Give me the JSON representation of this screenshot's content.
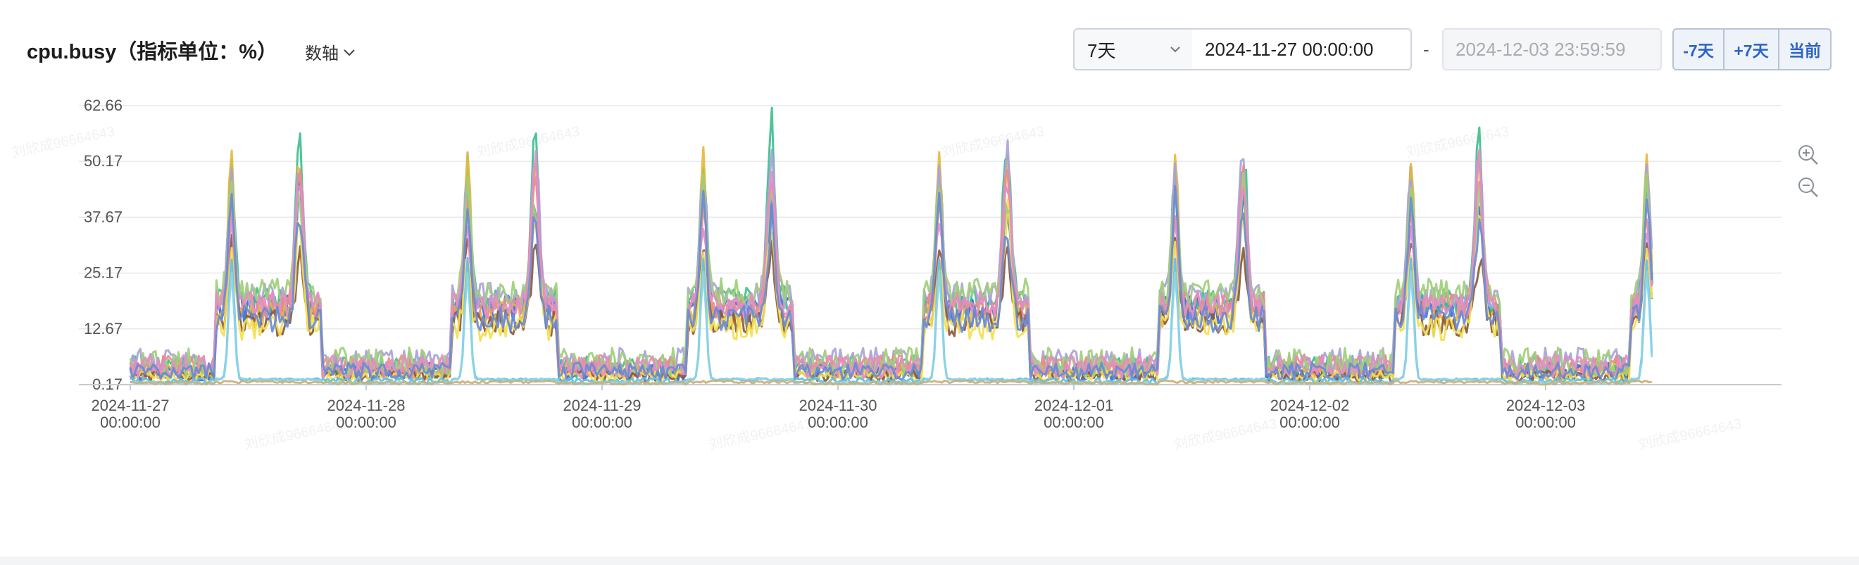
{
  "header": {
    "title": "cpu.busy（指标单位：%）",
    "axis_switch_label": "数轴"
  },
  "controls": {
    "range_value": "7天",
    "start_time": "2024-11-27 00:00:00",
    "separator": "-",
    "end_time": "2024-12-03 23:59:59",
    "buttons": [
      "-7天",
      "+7天",
      "当前"
    ]
  },
  "watermark_text": "刘欣成96664643",
  "chart_data": {
    "type": "line",
    "title": "",
    "xlabel": "",
    "ylabel": "",
    "ylim": [
      0.17,
      62.66
    ],
    "yticks": [
      "62.66",
      "50.17",
      "37.67",
      "25.17",
      "12.67",
      "0.17"
    ],
    "xlim": [
      "2024-11-27 00:00",
      "2024-12-04 00:00"
    ],
    "xticks": [
      {
        "date": "2024-11-27",
        "time": "00:00:00"
      },
      {
        "date": "2024-11-28",
        "time": "00:00:00"
      },
      {
        "date": "2024-11-29",
        "time": "00:00:00"
      },
      {
        "date": "2024-11-30",
        "time": "00:00:00"
      },
      {
        "date": "2024-12-01",
        "time": "00:00:00"
      },
      {
        "date": "2024-12-02",
        "time": "00:00:00"
      },
      {
        "date": "2024-12-03",
        "time": "00:00:00"
      }
    ],
    "data_end_day": 6.45,
    "grid": true,
    "legend": "none",
    "series": [
      {
        "color": "#3b6fd8",
        "baseline": 17,
        "peak1": 46,
        "peak2": 43,
        "night": 3
      },
      {
        "color": "#3fbf8e",
        "baseline": 19,
        "peak1": 50,
        "peak2": 58,
        "night": 4
      },
      {
        "color": "#e8b83a",
        "baseline": 16,
        "peak1": 52,
        "peak2": 50,
        "night": 3
      },
      {
        "color": "#a9a3d9",
        "baseline": 20,
        "peak1": 48,
        "peak2": 54,
        "night": 5
      },
      {
        "color": "#f08a8a",
        "baseline": 18,
        "peak1": 40,
        "peak2": 47,
        "night": 4
      },
      {
        "color": "#8b5a3c",
        "baseline": 14,
        "peak1": 33,
        "peak2": 30,
        "night": 2
      },
      {
        "color": "#f3df4f",
        "baseline": 13,
        "peak1": 30,
        "peak2": 40,
        "night": 2
      },
      {
        "color": "#9fcf7a",
        "baseline": 21,
        "peak1": 45,
        "peak2": 44,
        "night": 5
      },
      {
        "color": "#e58cc7",
        "baseline": 18,
        "peak1": 36,
        "peak2": 50,
        "night": 4
      },
      {
        "color": "#6a8bd6",
        "baseline": 15,
        "peak1": 42,
        "peak2": 38,
        "night": 3
      },
      {
        "color": "#5bc0e8",
        "baseline": 1,
        "peak1": 27,
        "peak2": 0,
        "night": 1
      },
      {
        "color": "#8fd3e6",
        "baseline": 1,
        "peak1": 24,
        "peak2": 0,
        "night": 0.5
      },
      {
        "color": "#c9b07a",
        "baseline": 0.5,
        "peak1": 0,
        "peak2": 0,
        "night": 0.5
      }
    ]
  }
}
